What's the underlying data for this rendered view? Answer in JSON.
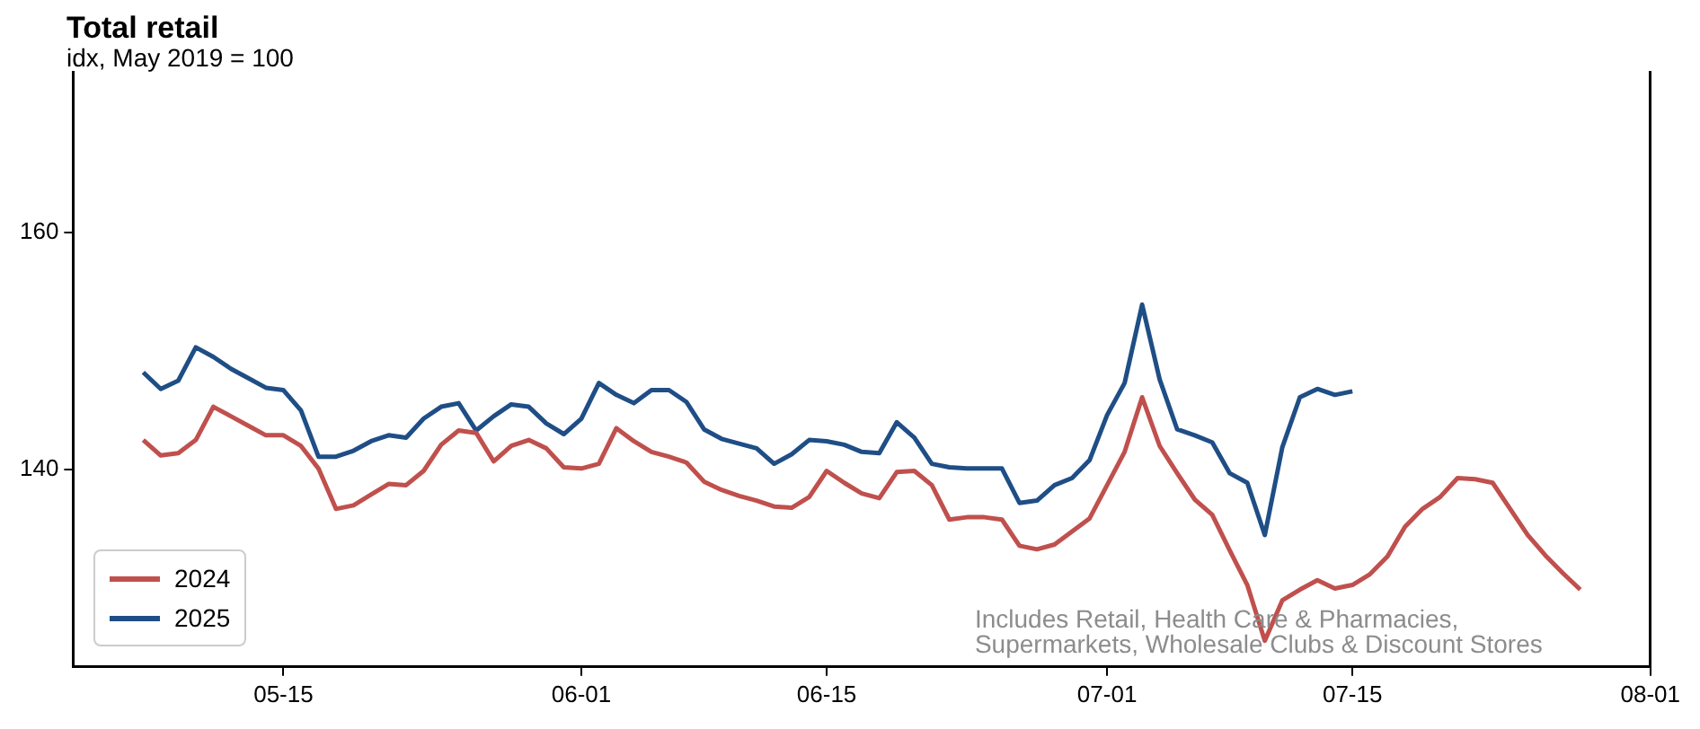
{
  "chart_data": {
    "type": "line",
    "title": "Total retail",
    "subtitle": "idx, May 2019 = 100",
    "annotations": [
      "Includes Retail, Health Care & Pharmacies,\nSupermarkets, Wholesale Clubs & Discount Stores"
    ],
    "x": [
      "--05-07",
      "--05-08",
      "--05-09",
      "--05-10",
      "--05-11",
      "--05-12",
      "--05-13",
      "--05-14",
      "--05-15",
      "--05-16",
      "--05-17",
      "--05-18",
      "--05-19",
      "--05-20",
      "--05-21",
      "--05-22",
      "--05-23",
      "--05-24",
      "--05-25",
      "--05-26",
      "--05-27",
      "--05-28",
      "--05-29",
      "--05-30",
      "--05-31",
      "--06-01",
      "--06-02",
      "--06-03",
      "--06-04",
      "--06-05",
      "--06-06",
      "--06-07",
      "--06-08",
      "--06-09",
      "--06-10",
      "--06-11",
      "--06-12",
      "--06-13",
      "--06-14",
      "--06-15",
      "--06-16",
      "--06-17",
      "--06-18",
      "--06-19",
      "--06-20",
      "--06-21",
      "--06-22",
      "--06-23",
      "--06-24",
      "--06-25",
      "--06-26",
      "--06-27",
      "--06-28",
      "--06-29",
      "--06-30",
      "--07-01",
      "--07-02",
      "--07-03",
      "--07-04",
      "--07-05",
      "--07-06",
      "--07-07",
      "--07-08",
      "--07-09",
      "--07-10",
      "--07-11",
      "--07-12",
      "--07-13",
      "--07-14",
      "--07-15",
      "--07-16",
      "--07-17",
      "--07-18",
      "--07-19",
      "--07-20",
      "--07-21",
      "--07-22",
      "--07-23",
      "--07-24",
      "--07-25",
      "--07-26",
      "--07-27",
      "--07-28"
    ],
    "series": [
      {
        "name": "2024",
        "color": "#c0504d",
        "values": [
          142.5,
          141.2,
          141.4,
          142.5,
          145.3,
          144.5,
          143.7,
          142.9,
          142.9,
          142.0,
          140.1,
          136.7,
          137.0,
          137.9,
          138.8,
          138.7,
          139.9,
          142.1,
          143.3,
          143.1,
          140.7,
          142.0,
          142.5,
          141.8,
          140.2,
          140.1,
          140.5,
          143.5,
          142.4,
          141.5,
          141.1,
          140.6,
          139.0,
          138.3,
          137.8,
          137.4,
          136.9,
          136.8,
          137.7,
          139.9,
          138.9,
          138.0,
          137.6,
          139.8,
          139.9,
          138.7,
          135.8,
          136.0,
          136.0,
          135.8,
          133.6,
          133.3,
          133.7,
          134.8,
          135.9,
          138.7,
          141.5,
          146.1,
          142.0,
          139.7,
          137.5,
          136.2,
          133.2,
          130.3,
          125.6,
          129.0,
          129.9,
          130.7,
          130.0,
          130.3,
          131.2,
          132.7,
          135.2,
          136.7,
          137.7,
          139.3,
          139.2,
          138.9,
          136.7,
          134.5,
          132.8,
          131.3,
          129.9
        ]
      },
      {
        "name": "2025",
        "color": "#1f4e86",
        "values": [
          148.2,
          146.8,
          147.5,
          150.3,
          149.5,
          148.5,
          147.7,
          146.9,
          146.7,
          145.0,
          141.1,
          141.1,
          141.6,
          142.4,
          142.9,
          142.7,
          144.3,
          145.3,
          145.6,
          143.3,
          144.5,
          145.5,
          145.3,
          143.9,
          143.0,
          144.3,
          147.3,
          146.3,
          145.6,
          146.7,
          146.7,
          145.7,
          143.4,
          142.6,
          142.2,
          141.8,
          140.5,
          141.3,
          142.5,
          142.4,
          142.1,
          141.5,
          141.4,
          144.0,
          142.7,
          140.5,
          140.2,
          140.1,
          140.1,
          140.1,
          137.2,
          137.4,
          138.7,
          139.3,
          140.8,
          144.6,
          147.3,
          153.9,
          147.6,
          143.4,
          142.9,
          142.3,
          139.7,
          138.9,
          134.5,
          141.9,
          146.1,
          146.8,
          146.3,
          146.6,
          null,
          null,
          null,
          null,
          null,
          null,
          null,
          null,
          null,
          null,
          null,
          null,
          null
        ]
      }
    ],
    "xlim": [
      "--05-03",
      "--08-01"
    ],
    "xticks": [
      {
        "value": "--05-15",
        "label": "05-15"
      },
      {
        "value": "--06-01",
        "label": "06-01"
      },
      {
        "value": "--06-15",
        "label": "06-15"
      },
      {
        "value": "--07-01",
        "label": "07-01"
      },
      {
        "value": "--07-15",
        "label": "07-15"
      },
      {
        "value": "--08-01",
        "label": "08-01"
      }
    ],
    "ylim": [
      123.4,
      173.5
    ],
    "yticks": [
      140,
      160
    ],
    "legend": "bottom left",
    "marker": "none",
    "line_style": "solid"
  }
}
